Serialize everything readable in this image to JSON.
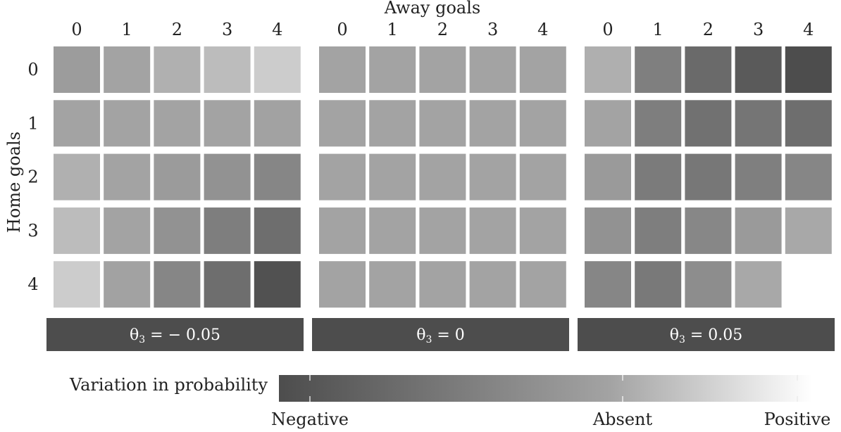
{
  "chart_data": {
    "type": "heatmap",
    "xlabel": "Away goals",
    "ylabel": "Home goals",
    "x_categories": [
      "0",
      "1",
      "2",
      "3",
      "4"
    ],
    "y_categories": [
      "0",
      "1",
      "2",
      "3",
      "4"
    ],
    "panels": [
      {
        "label_prefix": "θ",
        "label_sub": "3",
        "label_suffix": " = − 0.05",
        "values": [
          [
            -0.05,
            0.0,
            0.14,
            0.27,
            0.45
          ],
          [
            0.0,
            0.0,
            0.0,
            0.0,
            -0.01
          ],
          [
            0.14,
            0.0,
            -0.06,
            -0.13,
            -0.22
          ],
          [
            0.27,
            0.0,
            -0.13,
            -0.28,
            -0.4
          ],
          [
            0.45,
            -0.01,
            -0.22,
            -0.4,
            -0.62
          ]
        ]
      },
      {
        "label_prefix": "θ",
        "label_sub": "3",
        "label_suffix": " = 0",
        "values": [
          [
            0,
            0,
            0,
            0,
            0
          ],
          [
            0,
            0,
            0,
            0,
            0
          ],
          [
            0,
            0,
            0,
            0,
            0
          ],
          [
            0,
            0,
            0,
            0,
            0
          ],
          [
            0,
            0,
            0,
            0,
            0
          ]
        ]
      },
      {
        "label_prefix": "θ",
        "label_sub": "3",
        "label_suffix": " = 0.05",
        "values": [
          [
            0.13,
            -0.27,
            -0.43,
            -0.55,
            -0.65
          ],
          [
            0.0,
            -0.28,
            -0.38,
            -0.35,
            -0.4
          ],
          [
            -0.07,
            -0.3,
            -0.33,
            -0.27,
            -0.22
          ],
          [
            -0.13,
            -0.28,
            -0.21,
            -0.07,
            0.05
          ],
          [
            -0.22,
            -0.32,
            -0.17,
            0.05,
            1.0
          ]
        ]
      }
    ],
    "colorbar": {
      "title": "Variation in probability",
      "labels": [
        "Negative",
        "Absent",
        "Positive"
      ],
      "min": -0.65,
      "max": 1.0,
      "colors": {
        "negative": "#4d4d4d",
        "absent": "#a3a3a3",
        "positive": "#ffffff"
      }
    }
  }
}
